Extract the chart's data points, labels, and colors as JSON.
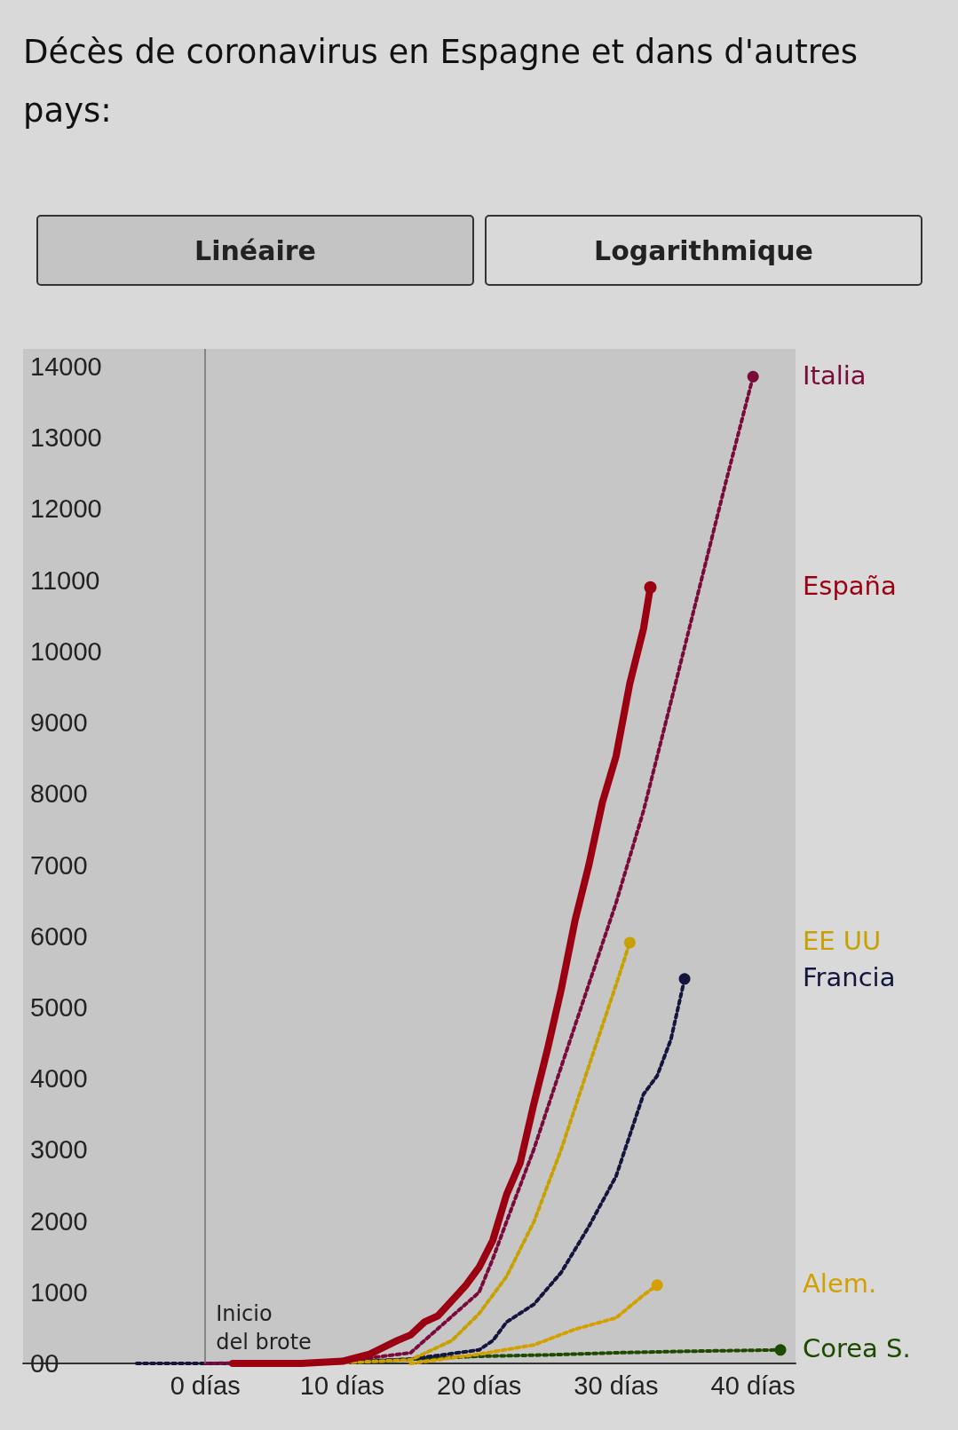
{
  "chart_data": {
    "type": "line",
    "title": "Décès de coronavirus en Espagne et dans d'autres pays:",
    "annotations": [
      "Linéaire",
      "Logarithmique"
    ],
    "xlim": [
      -13.3,
      43.1
    ],
    "ylim": [
      0,
      14250
    ],
    "xticks": [
      {
        "value": 0,
        "label": "0 días"
      },
      {
        "value": 10,
        "label": "10 días"
      },
      {
        "value": 20,
        "label": "20 días"
      },
      {
        "value": 30,
        "label": "30 días"
      },
      {
        "value": 40,
        "label": "40 días"
      }
    ],
    "yticks": [
      {
        "value": 0,
        "label": "00"
      },
      1000,
      2000,
      3000,
      4000,
      5000,
      6000,
      7000,
      8000,
      9000,
      10000,
      11000,
      12000,
      13000,
      14000
    ],
    "ref_lines": [
      {
        "axis": "x",
        "value": 0,
        "label": "Inicio\ndel brote",
        "color": "#707070"
      }
    ],
    "grid": false,
    "legend": "right",
    "tick_labels": "xy",
    "series": [
      {
        "name": "Corea S.",
        "color": "#1c4a00",
        "line_style": "dotted",
        "marker": "none",
        "x": [
          5,
          10,
          15,
          20,
          25,
          30,
          35,
          42
        ],
        "values": [
          0,
          20,
          60,
          100,
          120,
          150,
          170,
          190
        ]
      },
      {
        "name": "Alem.",
        "color": "#d4a000",
        "line_style": "dotted",
        "marker": "none",
        "x": [
          15,
          20,
          24,
          27,
          30,
          32,
          33
        ],
        "values": [
          0,
          130,
          260,
          480,
          640,
          960,
          1100
        ]
      },
      {
        "name": "Francia",
        "color": "#14143c",
        "line_style": "dotted",
        "marker": "none",
        "x": [
          -5,
          5,
          10,
          15,
          20,
          21,
          22,
          24,
          26,
          28,
          30,
          32,
          33,
          34,
          35
        ],
        "values": [
          0,
          0,
          10,
          60,
          190,
          320,
          580,
          830,
          1280,
          1920,
          2630,
          3780,
          4040,
          4550,
          5400
        ]
      },
      {
        "name": "EE UU",
        "color": "#c8a000",
        "line_style": "dotted",
        "marker": "none",
        "x": [
          5,
          10,
          15,
          18,
          20,
          22,
          24,
          26,
          28,
          30,
          31
        ],
        "values": [
          0,
          10,
          50,
          320,
          700,
          1220,
          1990,
          3010,
          4170,
          5320,
          5910
        ]
      },
      {
        "name": "Italia",
        "color": "#7a0a3a",
        "line_style": "dotted",
        "marker": "none",
        "x": [
          0,
          5,
          10,
          15,
          20,
          21,
          22,
          24,
          26,
          28,
          30,
          32,
          34,
          36,
          38,
          40
        ],
        "values": [
          0,
          10,
          30,
          150,
          1000,
          1470,
          1990,
          3010,
          4170,
          5320,
          6470,
          7760,
          9290,
          10830,
          12370,
          13860
        ]
      },
      {
        "name": "España",
        "color": "#9b0012",
        "line_style": "solid",
        "marker": "none",
        "x": [
          2,
          7,
          10,
          12,
          14,
          15,
          16,
          17,
          19,
          20,
          21,
          22,
          23,
          24,
          25,
          26,
          27,
          28,
          29,
          30,
          31,
          32,
          32.5
        ],
        "values": [
          0,
          0,
          30,
          130,
          320,
          400,
          580,
          670,
          1090,
          1350,
          1730,
          2370,
          2820,
          3650,
          4420,
          5260,
          6220,
          6990,
          7880,
          8530,
          9550,
          10320,
          10900
        ]
      }
    ]
  }
}
